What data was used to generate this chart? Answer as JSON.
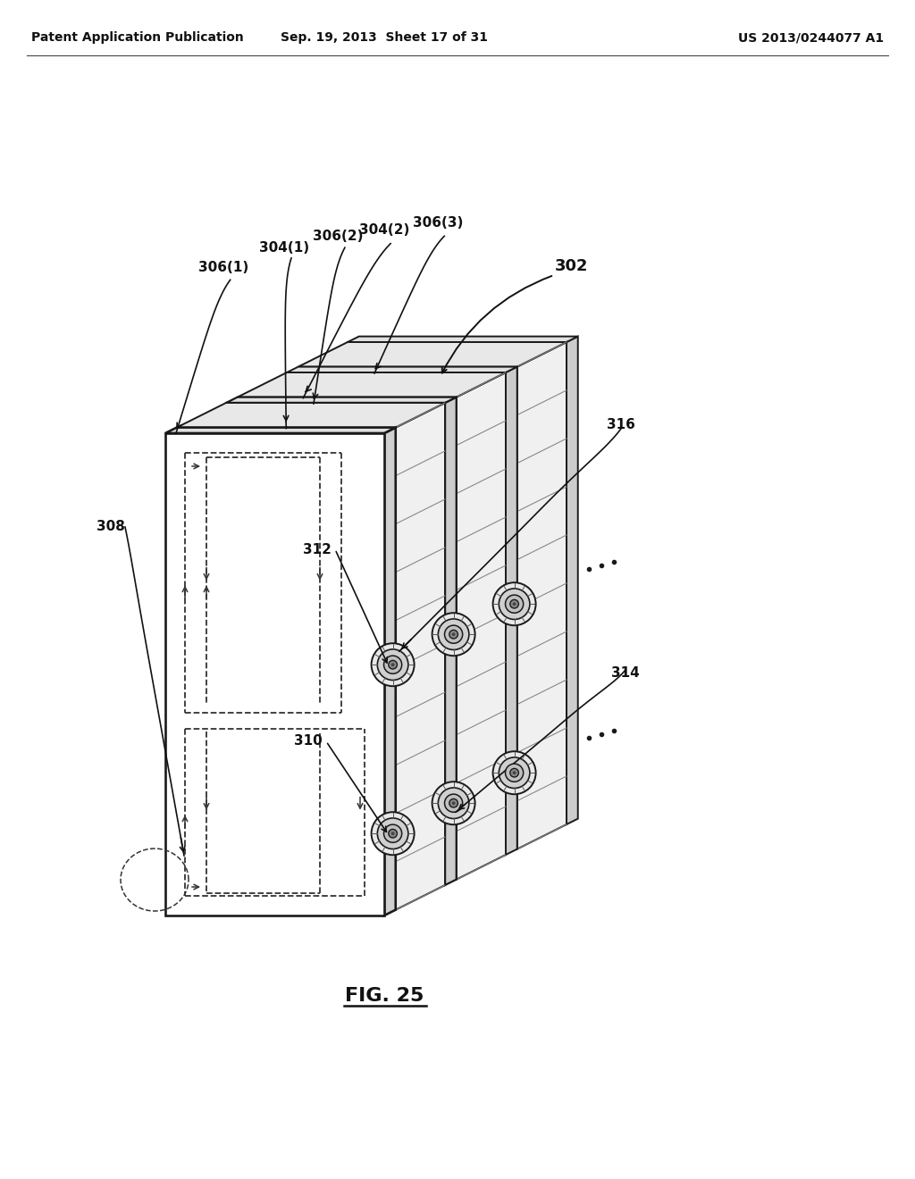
{
  "background_color": "#ffffff",
  "header_left": "Patent Application Publication",
  "header_center": "Sep. 19, 2013  Sheet 17 of 31",
  "header_right": "US 2013/0244077 A1",
  "figure_label": "FIG. 25",
  "labels": {
    "306_1": "306(1)",
    "306_2": "306(2)",
    "306_3": "306(3)",
    "304_1": "304(1)",
    "304_2": "304(2)",
    "302": "302",
    "308": "308",
    "310": "310",
    "312": "312",
    "314": "314",
    "316": "316"
  },
  "line_color": "#1a1a1a",
  "dashed_color": "#333333",
  "text_color": "#111111",
  "header_fontsize": 10,
  "label_fontsize": 11,
  "fig_label_fontsize": 13
}
